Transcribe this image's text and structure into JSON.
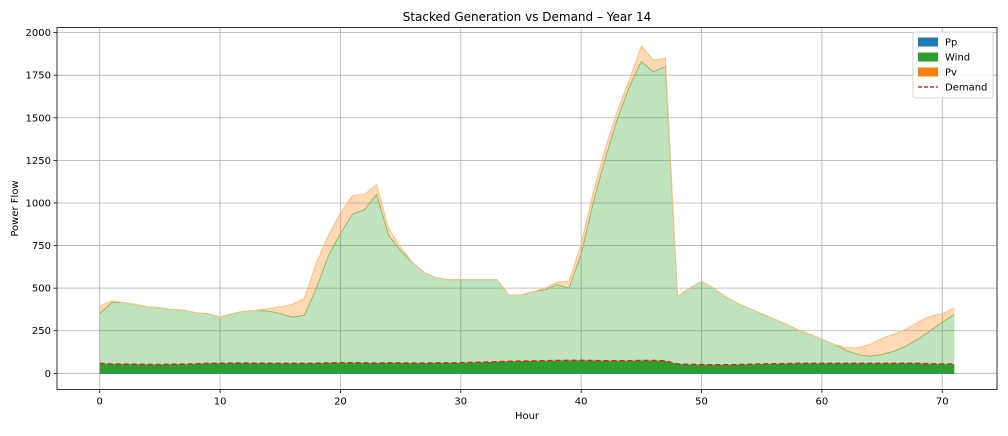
{
  "chart_data": {
    "type": "area",
    "title": "Stacked Generation vs Demand – Year 14",
    "xlabel": "Hour",
    "ylabel": "Power Flow",
    "xlim": [
      -3.55,
      74.55
    ],
    "ylim": [
      -95,
      2030
    ],
    "xticks": [
      0,
      10,
      20,
      30,
      40,
      50,
      60,
      70
    ],
    "yticks": [
      0,
      250,
      500,
      750,
      1000,
      1250,
      1500,
      1750,
      2000
    ],
    "grid": true,
    "legend_position": "top-right",
    "x": [
      0,
      1,
      2,
      3,
      4,
      5,
      6,
      7,
      8,
      9,
      10,
      11,
      12,
      13,
      14,
      15,
      16,
      17,
      18,
      19,
      20,
      21,
      22,
      23,
      24,
      25,
      26,
      27,
      28,
      29,
      30,
      31,
      32,
      33,
      34,
      35,
      36,
      37,
      38,
      39,
      40,
      41,
      42,
      43,
      44,
      45,
      46,
      47,
      48,
      49,
      50,
      51,
      52,
      53,
      54,
      55,
      56,
      57,
      58,
      59,
      60,
      61,
      62,
      63,
      64,
      65,
      66,
      67,
      68,
      69,
      70,
      71
    ],
    "series": [
      {
        "name": "Pp",
        "color": "#1f77b4",
        "values": [
          0,
          0,
          0,
          0,
          0,
          0,
          0,
          0,
          0,
          0,
          0,
          0,
          0,
          0,
          0,
          0,
          0,
          0,
          0,
          0,
          0,
          0,
          0,
          0,
          0,
          0,
          0,
          0,
          0,
          0,
          0,
          0,
          0,
          0,
          0,
          0,
          0,
          0,
          0,
          0,
          0,
          0,
          0,
          0,
          0,
          0,
          0,
          0,
          0,
          0,
          0,
          0,
          0,
          0,
          0,
          0,
          0,
          0,
          0,
          0,
          0,
          0,
          0,
          0,
          0,
          0,
          0,
          0,
          0,
          0,
          0,
          0
        ]
      },
      {
        "name": "Wind",
        "color": "#2ca02c",
        "values": [
          350,
          415,
          415,
          405,
          390,
          385,
          375,
          370,
          355,
          350,
          330,
          350,
          365,
          370,
          365,
          350,
          330,
          340,
          500,
          690,
          820,
          935,
          960,
          1050,
          810,
          720,
          650,
          590,
          560,
          550,
          550,
          550,
          550,
          550,
          460,
          460,
          480,
          490,
          520,
          500,
          700,
          1000,
          1260,
          1490,
          1680,
          1830,
          1770,
          1800,
          450,
          500,
          540,
          500,
          450,
          410,
          380,
          350,
          320,
          290,
          255,
          230,
          200,
          170,
          135,
          110,
          100,
          110,
          130,
          160,
          200,
          250,
          300,
          345
        ]
      },
      {
        "name": "Pv",
        "color": "#ff7f0e",
        "values": [
          45,
          10,
          0,
          0,
          0,
          0,
          0,
          0,
          0,
          0,
          0,
          0,
          0,
          0,
          15,
          40,
          75,
          100,
          150,
          120,
          120,
          110,
          90,
          60,
          40,
          20,
          0,
          0,
          0,
          0,
          0,
          0,
          0,
          0,
          0,
          0,
          0,
          10,
          15,
          40,
          60,
          60,
          60,
          50,
          40,
          90,
          70,
          50,
          0,
          0,
          0,
          0,
          0,
          0,
          0,
          0,
          0,
          0,
          0,
          0,
          0,
          0,
          15,
          40,
          70,
          95,
          100,
          100,
          100,
          85,
          50,
          40
        ]
      },
      {
        "name": "Demand",
        "color": "#d62728",
        "style": "dashed",
        "values": [
          58,
          55,
          54,
          53,
          52,
          52,
          53,
          54,
          56,
          58,
          59,
          60,
          60,
          59,
          59,
          58,
          58,
          58,
          59,
          61,
          62,
          62,
          61,
          60,
          62,
          61,
          60,
          60,
          61,
          61,
          62,
          64,
          66,
          68,
          70,
          72,
          73,
          74,
          75,
          76,
          76,
          75,
          74,
          74,
          74,
          75,
          75,
          73,
          55,
          52,
          51,
          50,
          50,
          51,
          53,
          55,
          56,
          57,
          58,
          58,
          58,
          58,
          58,
          58,
          58,
          58,
          58,
          59,
          58,
          56,
          55,
          55
        ]
      }
    ]
  }
}
